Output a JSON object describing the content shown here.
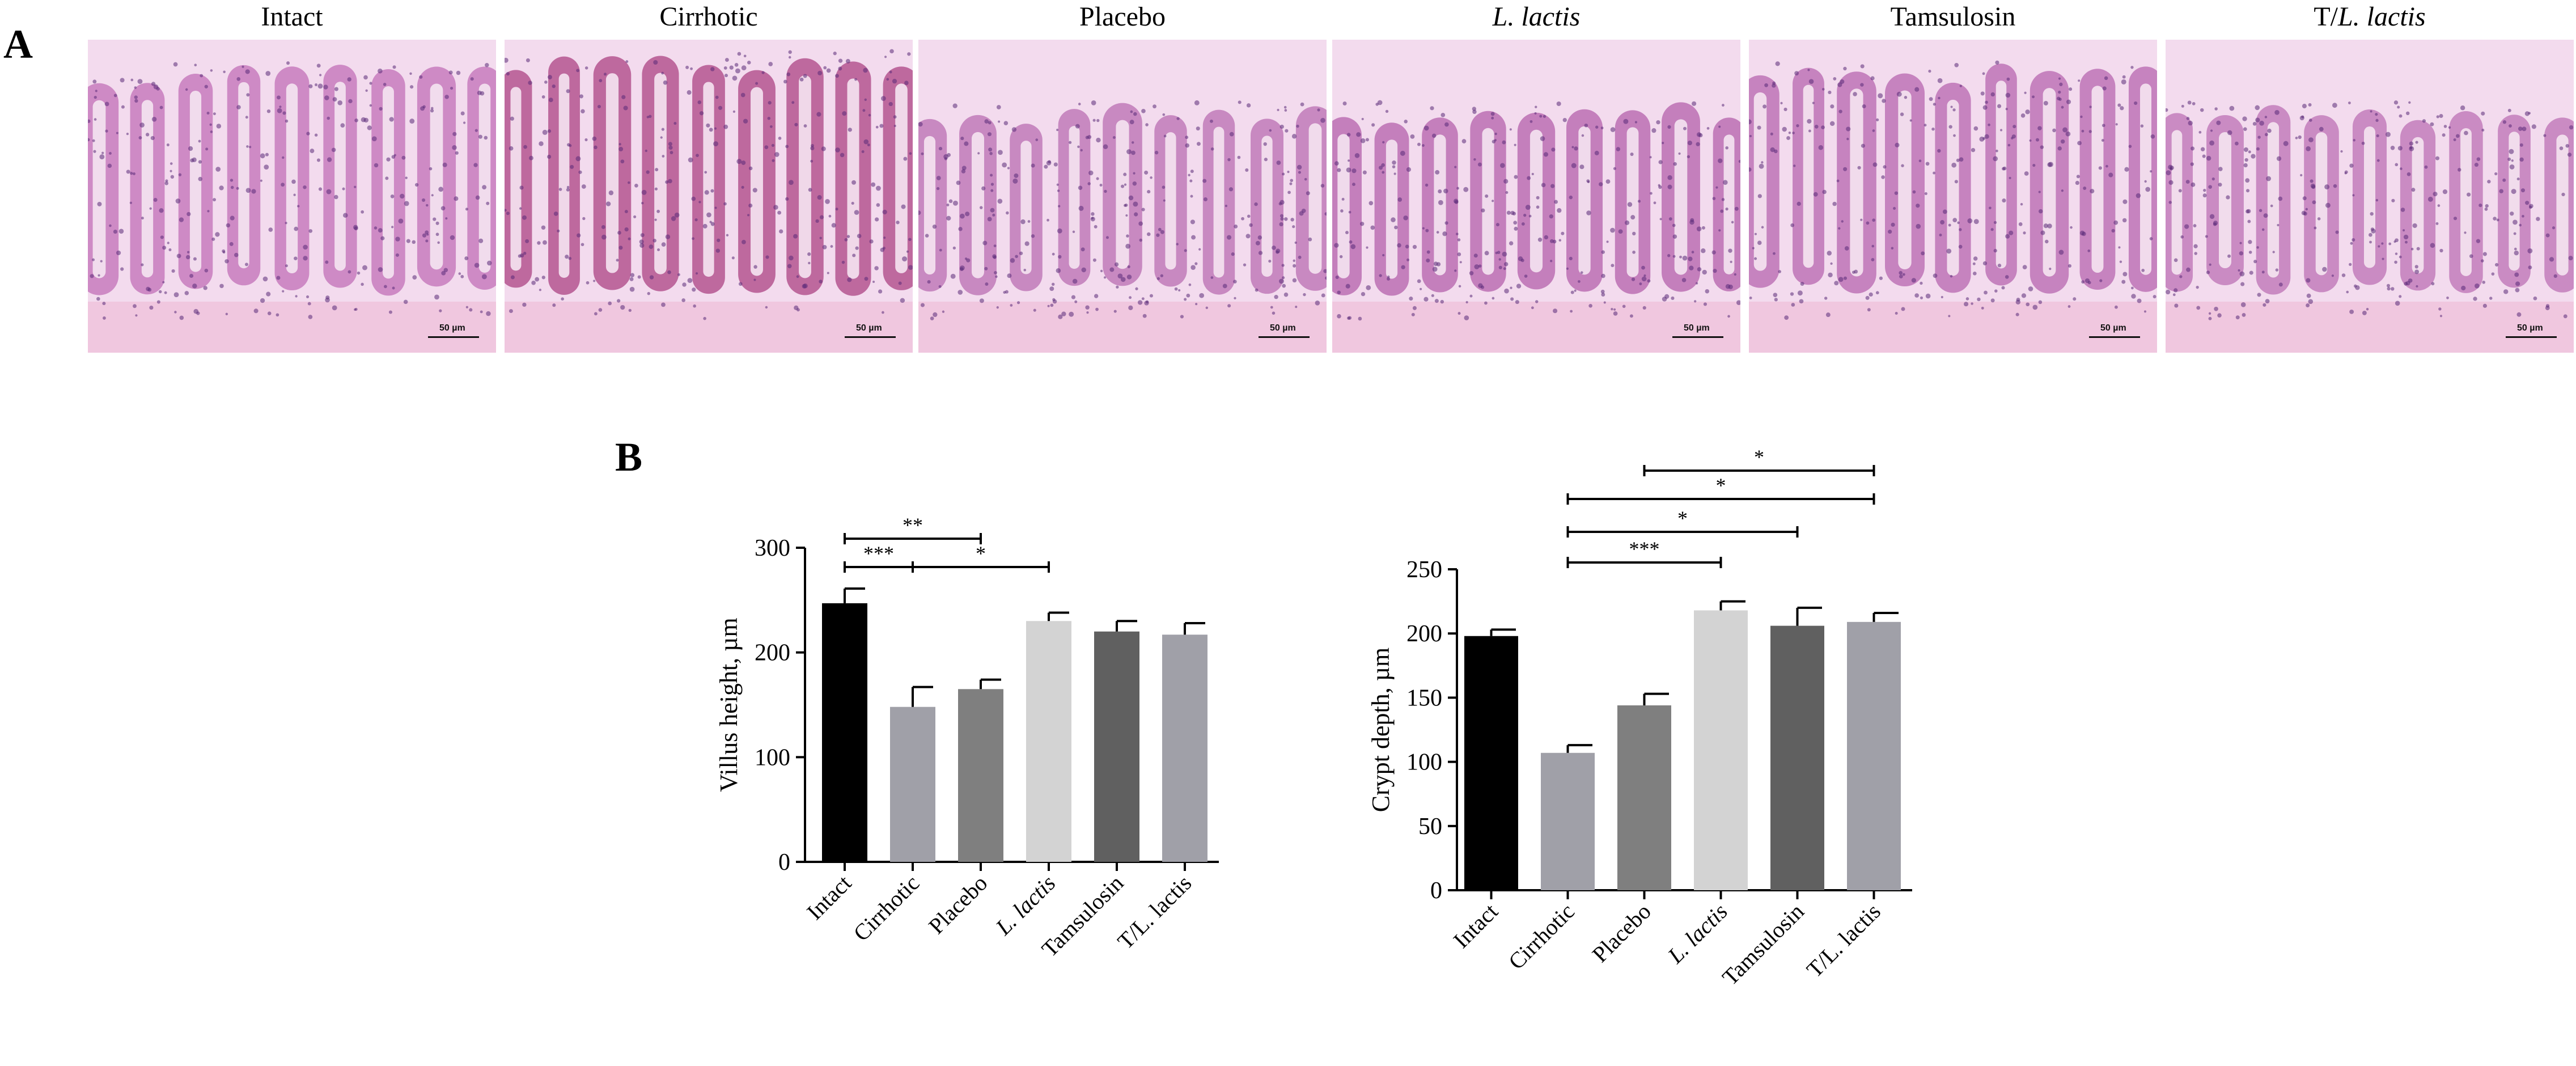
{
  "panels": {
    "A": "A",
    "B": "B"
  },
  "micrographs": [
    {
      "label": "Intact",
      "italic": false,
      "scale": "50 µm",
      "tint": "#c77bbd"
    },
    {
      "label": "Cirrhotic",
      "italic": false,
      "scale": "50 µm",
      "tint": "#b4558f"
    },
    {
      "label": "Placebo",
      "italic": false,
      "scale": "50 µm",
      "tint": "#c07ab8"
    },
    {
      "label": "L. lactis",
      "italic": true,
      "scale": "50 µm",
      "tint": "#bb6fb3"
    },
    {
      "label": "Tamsulosin",
      "italic": false,
      "scale": "50 µm",
      "tint": "#bd73b6"
    },
    {
      "label_prefix": "T/",
      "label_italic": "L. lactis",
      "italic": false,
      "scale": "50 µm",
      "tint": "#c27cbb"
    }
  ],
  "chart_data": [
    {
      "type": "bar",
      "categories": [
        "Intact",
        "Cirrhotic",
        "Placebo",
        "L. lactis",
        "Tamsulosin",
        "T/L. lactis"
      ],
      "values": [
        247,
        148,
        165,
        230,
        220,
        217
      ],
      "errors": [
        14,
        19,
        9,
        8,
        10,
        11
      ],
      "colors": [
        "#000000",
        "#a0a0a8",
        "#7f7f7f",
        "#d3d3d3",
        "#606060",
        "#a0a0a8"
      ],
      "ylabel": "Villus height, µm",
      "ylim": [
        0,
        300
      ],
      "yticks": [
        0,
        100,
        200,
        300
      ],
      "significance": [
        {
          "from": 0,
          "to": 2,
          "label": "**"
        },
        {
          "from": 0,
          "to": 1,
          "label": "***"
        },
        {
          "from": 1,
          "to": 3,
          "label": "*"
        }
      ]
    },
    {
      "type": "bar",
      "categories": [
        "Intact",
        "Cirrhotic",
        "Placebo",
        "L. lactis",
        "Tamsulosin",
        "T/L. lactis"
      ],
      "values": [
        198,
        107,
        144,
        218,
        206,
        209
      ],
      "errors": [
        5,
        6,
        9,
        7,
        14,
        7
      ],
      "colors": [
        "#000000",
        "#a0a0a8",
        "#7f7f7f",
        "#d3d3d3",
        "#606060",
        "#a0a0a8"
      ],
      "ylabel": "Crypt depth, µm",
      "ylim": [
        0,
        250
      ],
      "yticks": [
        0,
        50,
        100,
        150,
        200,
        250
      ],
      "significance": [
        {
          "from": 2,
          "to": 5,
          "label": "*"
        },
        {
          "from": 1,
          "to": 5,
          "label": "*"
        },
        {
          "from": 1,
          "to": 4,
          "label": "*"
        },
        {
          "from": 1,
          "to": 3,
          "label": "***"
        }
      ]
    }
  ]
}
